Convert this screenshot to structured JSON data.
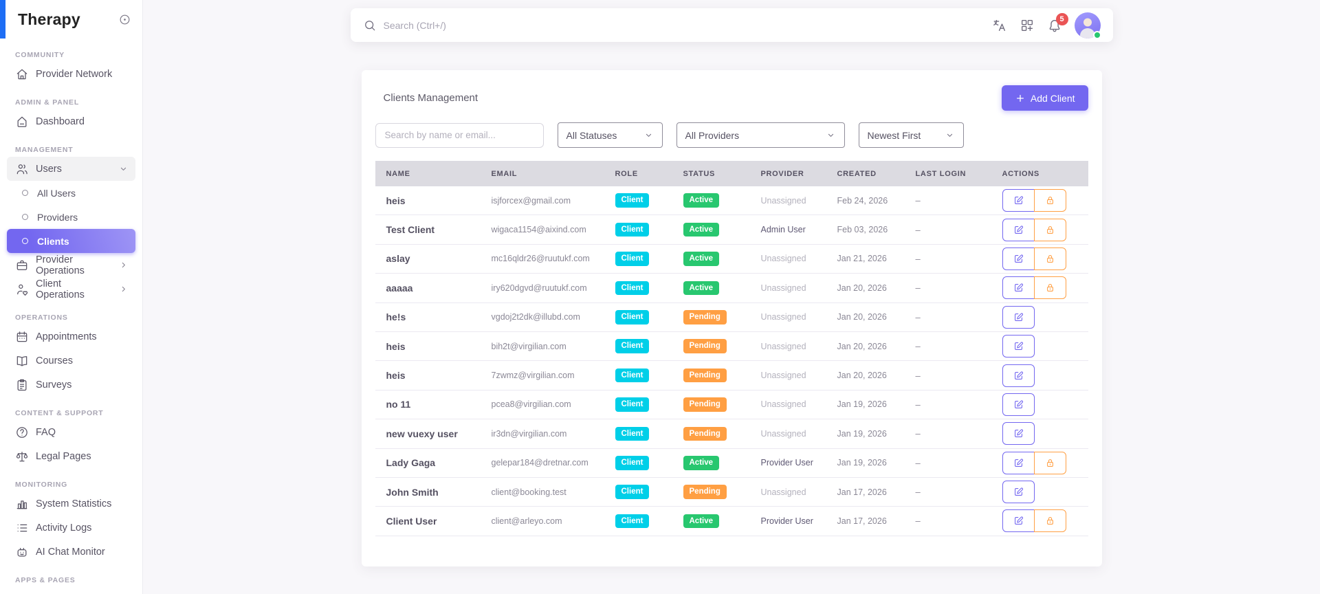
{
  "app": {
    "name": "Therapy"
  },
  "colors": {
    "primary": "#7367f0",
    "info": "#00cfe8",
    "success": "#28c76f",
    "warning": "#ff9f43",
    "danger": "#ea5455",
    "logo_accent": "#1e6ef5"
  },
  "topbar": {
    "search_placeholder": "Search (Ctrl+/)",
    "notification_count": "5",
    "icons": [
      "language-icon",
      "apps-grid-icon",
      "bell-icon",
      "user-avatar"
    ]
  },
  "sidebar": {
    "sections": [
      {
        "label": "COMMUNITY",
        "items": [
          {
            "label": "Provider Network",
            "icon": "home"
          }
        ]
      },
      {
        "label": "ADMIN & PANEL",
        "items": [
          {
            "label": "Dashboard",
            "icon": "dashboard"
          }
        ]
      },
      {
        "label": "MANAGEMENT",
        "items": [
          {
            "label": "Users",
            "icon": "users",
            "expanded": true,
            "children": [
              {
                "label": "All Users"
              },
              {
                "label": "Providers"
              },
              {
                "label": "Clients",
                "active": true
              }
            ]
          },
          {
            "label": "Provider Operations",
            "icon": "briefcase",
            "collapsible": true
          },
          {
            "label": "Client Operations",
            "icon": "user-heart",
            "collapsible": true
          }
        ]
      },
      {
        "label": "OPERATIONS",
        "items": [
          {
            "label": "Appointments",
            "icon": "calendar"
          },
          {
            "label": "Courses",
            "icon": "book"
          },
          {
            "label": "Surveys",
            "icon": "clipboard"
          }
        ]
      },
      {
        "label": "CONTENT & SUPPORT",
        "items": [
          {
            "label": "FAQ",
            "icon": "help"
          },
          {
            "label": "Legal Pages",
            "icon": "scale"
          }
        ]
      },
      {
        "label": "MONITORING",
        "items": [
          {
            "label": "System Statistics",
            "icon": "chart"
          },
          {
            "label": "Activity Logs",
            "icon": "list"
          },
          {
            "label": "AI Chat Monitor",
            "icon": "robot"
          }
        ]
      },
      {
        "label": "APPS & PAGES",
        "items": []
      }
    ]
  },
  "page": {
    "title": "Clients Management",
    "add_client_label": "Add Client",
    "filters": {
      "search_placeholder": "Search by name or email...",
      "status": "All Statuses",
      "provider": "All Providers",
      "sort": "Newest First"
    },
    "table": {
      "columns": [
        "NAME",
        "EMAIL",
        "ROLE",
        "STATUS",
        "PROVIDER",
        "CREATED",
        "LAST LOGIN",
        "ACTIONS"
      ],
      "rows": [
        {
          "name": "heis",
          "email": "isjforcex@gmail.com",
          "role": "Client",
          "status": "Active",
          "provider": "Unassigned",
          "created": "Feb 24, 2026",
          "last_login": "–",
          "actions": [
            "edit",
            "lock"
          ]
        },
        {
          "name": "Test Client",
          "email": "wigaca1154@aixind.com",
          "role": "Client",
          "status": "Active",
          "provider": "Admin User",
          "created": "Feb 03, 2026",
          "last_login": "–",
          "actions": [
            "edit",
            "lock"
          ]
        },
        {
          "name": "aslay",
          "email": "mc16qldr26@ruutukf.com",
          "role": "Client",
          "status": "Active",
          "provider": "Unassigned",
          "created": "Jan 21, 2026",
          "last_login": "–",
          "actions": [
            "edit",
            "lock"
          ]
        },
        {
          "name": "aaaaa",
          "email": "iry620dgvd@ruutukf.com",
          "role": "Client",
          "status": "Active",
          "provider": "Unassigned",
          "created": "Jan 20, 2026",
          "last_login": "–",
          "actions": [
            "edit",
            "lock"
          ]
        },
        {
          "name": "he!s",
          "email": "vgdoj2t2dk@illubd.com",
          "role": "Client",
          "status": "Pending",
          "provider": "Unassigned",
          "created": "Jan 20, 2026",
          "last_login": "–",
          "actions": [
            "edit"
          ]
        },
        {
          "name": "heis",
          "email": "bih2t@virgilian.com",
          "role": "Client",
          "status": "Pending",
          "provider": "Unassigned",
          "created": "Jan 20, 2026",
          "last_login": "–",
          "actions": [
            "edit"
          ]
        },
        {
          "name": "heis",
          "email": "7zwmz@virgilian.com",
          "role": "Client",
          "status": "Pending",
          "provider": "Unassigned",
          "created": "Jan 20, 2026",
          "last_login": "–",
          "actions": [
            "edit"
          ]
        },
        {
          "name": "no 11",
          "email": "pcea8@virgilian.com",
          "role": "Client",
          "status": "Pending",
          "provider": "Unassigned",
          "created": "Jan 19, 2026",
          "last_login": "–",
          "actions": [
            "edit"
          ]
        },
        {
          "name": "new vuexy user",
          "email": "ir3dn@virgilian.com",
          "role": "Client",
          "status": "Pending",
          "provider": "Unassigned",
          "created": "Jan 19, 2026",
          "last_login": "–",
          "actions": [
            "edit"
          ]
        },
        {
          "name": "Lady Gaga",
          "email": "gelepar184@dretnar.com",
          "role": "Client",
          "status": "Active",
          "provider": "Provider User",
          "created": "Jan 19, 2026",
          "last_login": "–",
          "actions": [
            "edit",
            "lock"
          ]
        },
        {
          "name": "John Smith",
          "email": "client@booking.test",
          "role": "Client",
          "status": "Pending",
          "provider": "Unassigned",
          "created": "Jan 17, 2026",
          "last_login": "–",
          "actions": [
            "edit"
          ]
        },
        {
          "name": "Client User",
          "email": "client@arleyo.com",
          "role": "Client",
          "status": "Active",
          "provider": "Provider User",
          "created": "Jan 17, 2026",
          "last_login": "–",
          "actions": [
            "edit",
            "lock"
          ]
        }
      ]
    }
  }
}
